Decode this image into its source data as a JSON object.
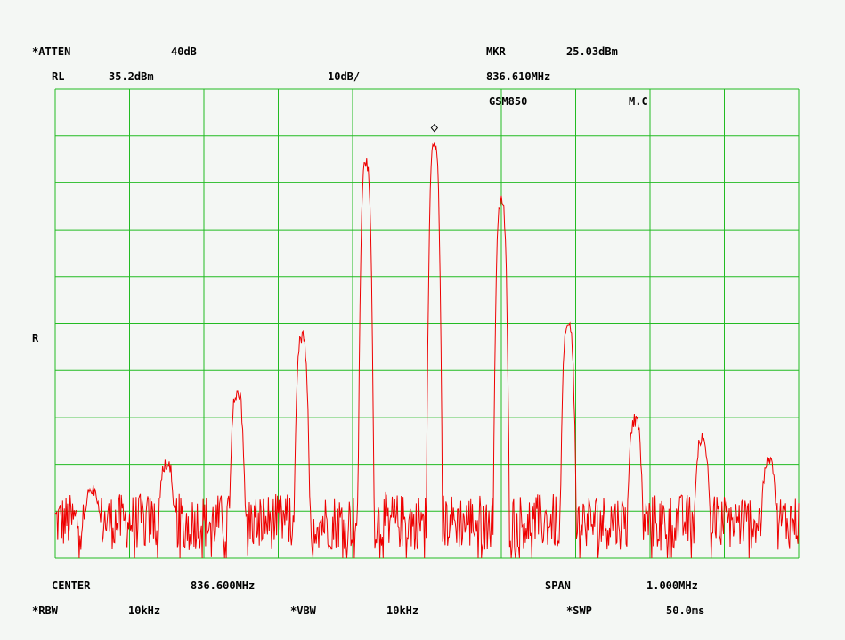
{
  "header": {
    "atten_label": "*ATTEN",
    "atten_value": "40dB",
    "mkr_label": "MKR",
    "mkr_value": "25.03dBm",
    "rl_label": "RL",
    "rl_value": "35.2dBm",
    "scale": "10dB/",
    "mkr_freq": "836.610MHz",
    "mode": "GSM850",
    "mode_tag": "M.C"
  },
  "side": {
    "r_label": "R"
  },
  "footer": {
    "center_label": "CENTER",
    "center_value": "836.600MHz",
    "span_label": "SPAN",
    "span_value": "1.000MHz",
    "rbw_label": "*RBW",
    "rbw_value": "10kHz",
    "vbw_label": "*VBW",
    "vbw_value": "10kHz",
    "swp_label": "*SWP",
    "swp_value": "50.0ms"
  },
  "colors": {
    "grid": "#22bb22",
    "trace": "#ee0000",
    "border": "#22bb22"
  },
  "chart_data": {
    "type": "line",
    "x_unit": "MHz",
    "y_unit": "dBm",
    "xlim": [
      836.1,
      837.1
    ],
    "ylim": [
      -64.8,
      35.2
    ],
    "grid": true,
    "divisions": {
      "x": 10,
      "y": 10
    },
    "noise_floor_dbm": -57,
    "marker": {
      "x": 836.61,
      "y": 25.03
    },
    "peaks": [
      {
        "x": 836.15,
        "y": -49
      },
      {
        "x": 836.25,
        "y": -43
      },
      {
        "x": 836.345,
        "y": -28
      },
      {
        "x": 836.432,
        "y": -16
      },
      {
        "x": 836.518,
        "y": 21
      },
      {
        "x": 836.61,
        "y": 25.03
      },
      {
        "x": 836.7,
        "y": 13
      },
      {
        "x": 836.79,
        "y": -13
      },
      {
        "x": 836.88,
        "y": -34
      },
      {
        "x": 836.97,
        "y": -38
      },
      {
        "x": 837.06,
        "y": -43
      }
    ]
  }
}
